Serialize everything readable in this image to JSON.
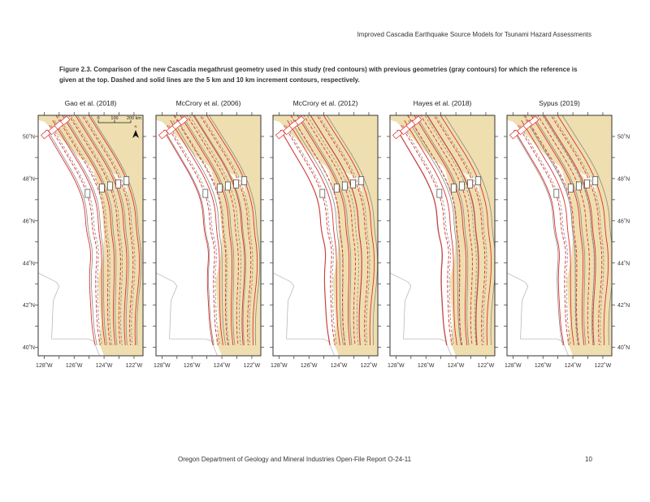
{
  "header": {
    "running_title": "Improved Cascadia Earthquake Source Models for Tsunami Hazard Assessments"
  },
  "caption": "Figure 2.3. Comparison of the new Cascadia megathrust geometry used in this study (red contours) with previous geometries (gray contours) for which the reference is given at the top. Dashed and solid lines are the 5 km and 10 km increment contours, respectively.",
  "figure": {
    "panels": [
      {
        "title": "Gao et al. (2018)",
        "has_scale_bar": true
      },
      {
        "title": "McCrory et al. (2006)",
        "has_scale_bar": false
      },
      {
        "title": "McCrory et al. (2012)",
        "has_scale_bar": false
      },
      {
        "title": "Hayes et al. (2018)",
        "has_scale_bar": false
      },
      {
        "title": "Sypus (2019)",
        "has_scale_bar": false
      }
    ],
    "lon_ticks": [
      "128˚W",
      "126˚W",
      "124˚W",
      "122˚W"
    ],
    "lat_ticks": [
      "50˚N",
      "48˚N",
      "46˚N",
      "44˚N",
      "42˚N",
      "40˚N"
    ],
    "scale_bar": {
      "labels": [
        "0",
        "100",
        "200 km"
      ]
    },
    "north_arrow_label": "N",
    "legend_meaning": {
      "new_model": "red contours",
      "previous_model": "gray contours"
    },
    "colors": {
      "land": "#efdfb0",
      "new_contour": "#e03030",
      "old_contour": "#8a8a8a",
      "frame": "#333333"
    }
  },
  "footer": {
    "report": "Oregon Department of Geology and Mineral Industries Open-File Report O-24-11",
    "page_number": "10"
  }
}
